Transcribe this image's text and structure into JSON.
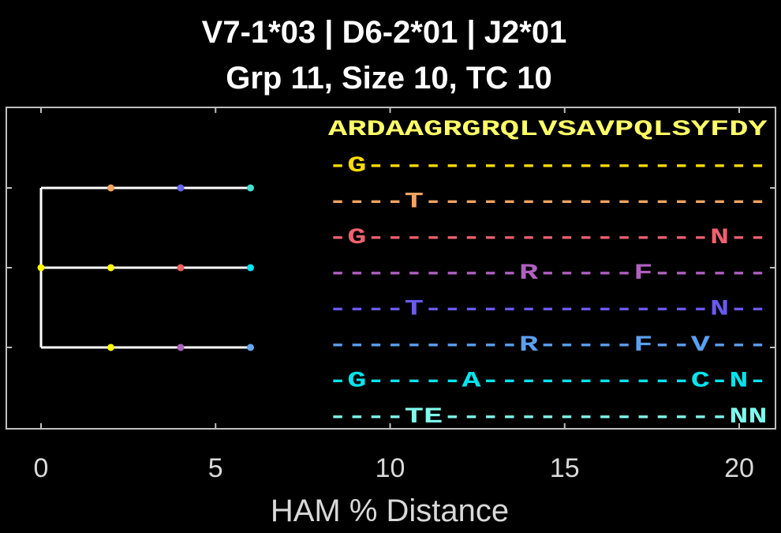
{
  "chart_data": {
    "type": "tree-with-alignment",
    "title": "V7-1*03 | D6-2*01 | J2*01",
    "subtitle": "Grp 11, Size 10, TC 10",
    "xlabel": "HAM % Distance",
    "xlim": [
      -1,
      21
    ],
    "xticks": [
      0,
      5,
      10,
      15,
      20
    ],
    "xtick_labels": [
      "0",
      "5",
      "10",
      "15",
      "20"
    ],
    "grid": false,
    "tree": {
      "root": {
        "x": 0,
        "color": "#ffff00"
      },
      "branches": [
        {
          "branch": 0,
          "x_start": 0,
          "x_end": 6,
          "nodes": [
            {
              "x": 2,
              "color": "#f4a460"
            },
            {
              "x": 4,
              "color": "#6666ee"
            },
            {
              "x": 6,
              "color": "#40e0d0"
            }
          ]
        },
        {
          "branch": 1,
          "x_start": 0,
          "x_end": 6,
          "nodes": [
            {
              "x": 0,
              "color": "#ffff00"
            },
            {
              "x": 2,
              "color": "#ffff00"
            },
            {
              "x": 4,
              "color": "#f06060"
            },
            {
              "x": 6,
              "color": "#00e5ee"
            }
          ]
        },
        {
          "branch": 2,
          "x_start": 0,
          "x_end": 6,
          "nodes": [
            {
              "x": 2,
              "color": "#ffff00"
            },
            {
              "x": 4,
              "color": "#b060c0"
            },
            {
              "x": 6,
              "color": "#66a8f0"
            }
          ]
        }
      ]
    },
    "alignment": {
      "consensus": {
        "text": "ARDAAGRGRQLVSAVPQLSYFDY",
        "color": "#ffff66"
      },
      "rows": [
        {
          "text": "-G---------------------",
          "color": "#ffdd00"
        },
        {
          "text": "----T------------------",
          "color": "#f4a460"
        },
        {
          "text": "-G------------------N--",
          "color": "#f06070"
        },
        {
          "text": "----------R-----F------",
          "color": "#b060c0"
        },
        {
          "text": "----T---------------N--",
          "color": "#6a5af0"
        },
        {
          "text": "----------R-----F--V---",
          "color": "#5aa0f0"
        },
        {
          "text": "-G-----A-----------C-N-",
          "color": "#00e5ee"
        },
        {
          "text": "----TE---------------NN",
          "color": "#7fffee"
        }
      ]
    }
  }
}
